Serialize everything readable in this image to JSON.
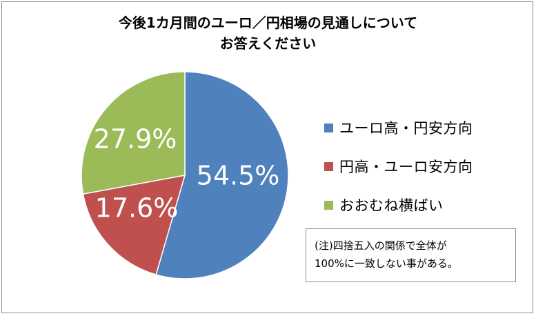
{
  "chart_data": {
    "type": "pie",
    "title": [
      "今後1カ月間のユーロ／円相場の見通しについて",
      "お答えください"
    ],
    "slices": [
      {
        "name": "ユーロ高・円安方向",
        "value": 54.5,
        "label": "54.5%",
        "color": "#4f81bd"
      },
      {
        "name": "円高・ユーロ安方向",
        "value": 17.6,
        "label": "17.6%",
        "color": "#c0504d"
      },
      {
        "name": "おおむね横ばい",
        "value": 27.9,
        "label": "27.9%",
        "color": "#9bbb59"
      }
    ],
    "legend_position": "right",
    "note": [
      "(注)四捨五入の関係で全体が",
      "100%に一致しない事がある。"
    ]
  }
}
